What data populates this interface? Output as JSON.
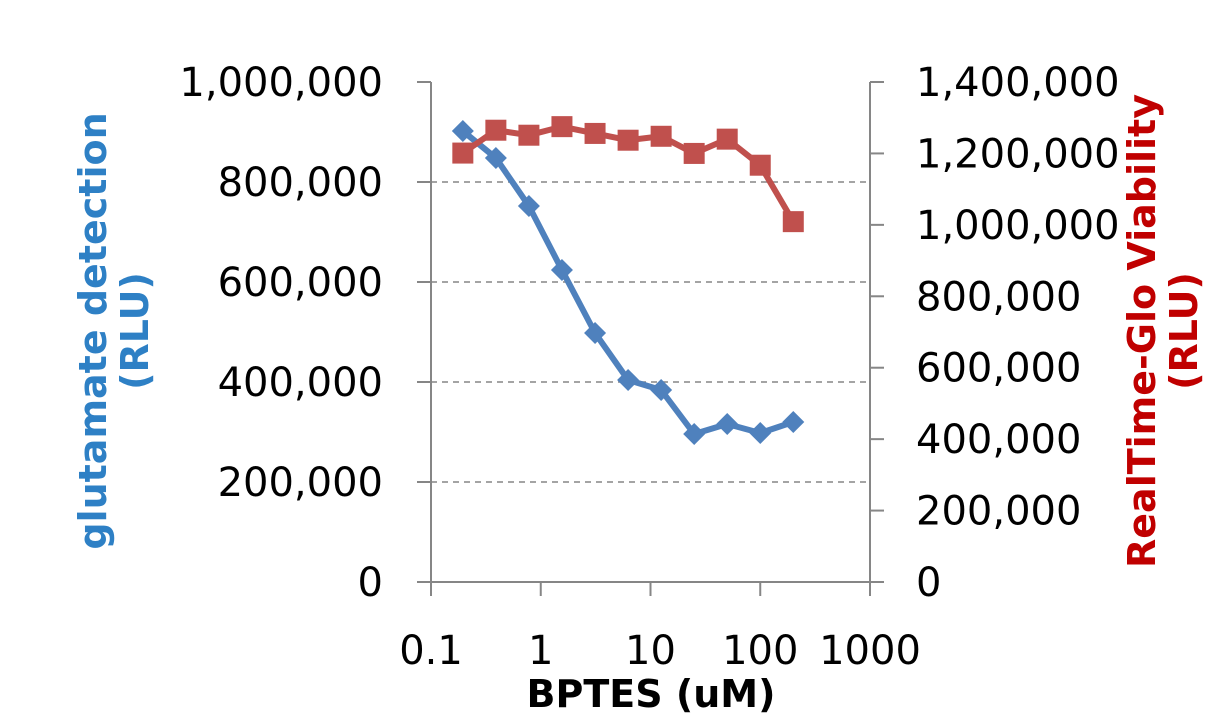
{
  "chart_data": {
    "type": "line",
    "title": "",
    "xlabel": "BPTES (uM)",
    "ylabel": "glutamate detection\n(RLU)",
    "y2label": "RealTime-Glo Viability\n(RLU)",
    "x_scale": "log",
    "xlim": [
      0.1,
      1000
    ],
    "ylim": [
      0,
      1000000
    ],
    "y2lim": [
      0,
      1400000
    ],
    "x_ticks": [
      "0.1",
      "1",
      "10",
      "100",
      "1000"
    ],
    "y_ticks": [
      "0",
      "200,000",
      "400,000",
      "600,000",
      "800,000",
      "1,000,000"
    ],
    "y2_ticks": [
      "0",
      "200,000",
      "400,000",
      "600,000",
      "800,000",
      "1,000,000",
      "1,200,000",
      "1,400,000"
    ],
    "grid": "horizontal dashed",
    "legend": "none",
    "series": [
      {
        "axis": "left",
        "marker": "diamond",
        "color": "#4f81bd",
        "x": [
          0.195,
          0.39,
          0.78,
          1.56,
          3.125,
          6.25,
          12.5,
          25,
          50,
          100,
          200
        ],
        "y": [
          902000,
          848000,
          752000,
          624000,
          498000,
          404000,
          384000,
          296000,
          316000,
          298000,
          320000
        ]
      },
      {
        "axis": "right",
        "marker": "square",
        "color": "#c0504d",
        "x": [
          0.195,
          0.39,
          0.78,
          1.56,
          3.125,
          6.25,
          12.5,
          25,
          50,
          100,
          200
        ],
        "y": [
          1201000,
          1265000,
          1251000,
          1275000,
          1256000,
          1237000,
          1248000,
          1200000,
          1240000,
          1167000,
          1009000
        ]
      }
    ]
  },
  "colors": {
    "left_axis_title": "#2e80c5",
    "right_axis_title": "#c00000",
    "axis_line": "#868686",
    "grid": "#868686"
  }
}
